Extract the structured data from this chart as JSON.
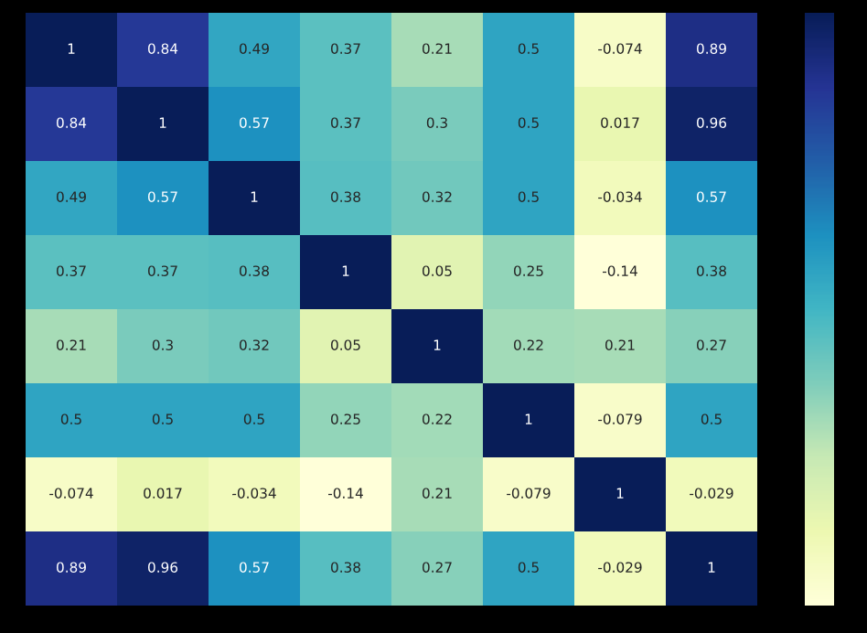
{
  "chart_data": {
    "type": "heatmap",
    "categories": [
      null,
      null,
      null,
      null,
      null,
      null,
      null,
      null
    ],
    "y_categories": [
      null,
      null,
      null,
      null,
      null,
      null,
      null,
      null
    ],
    "cells": [
      [
        1,
        0.84,
        0.49,
        0.37,
        0.21,
        0.5,
        -0.074,
        0.89
      ],
      [
        0.84,
        1,
        0.57,
        0.37,
        0.3,
        0.5,
        0.017,
        0.96
      ],
      [
        0.49,
        0.57,
        1,
        0.38,
        0.32,
        0.5,
        -0.034,
        0.57
      ],
      [
        0.37,
        0.37,
        0.38,
        1,
        0.05,
        0.25,
        -0.14,
        0.38
      ],
      [
        0.21,
        0.3,
        0.32,
        0.05,
        1,
        0.22,
        0.21,
        0.27
      ],
      [
        0.5,
        0.5,
        0.5,
        0.25,
        0.22,
        1,
        -0.079,
        0.5
      ],
      [
        -0.074,
        0.017,
        -0.034,
        -0.14,
        0.21,
        -0.079,
        1,
        -0.029
      ],
      [
        0.89,
        0.96,
        0.57,
        0.38,
        0.27,
        0.5,
        -0.029,
        1
      ]
    ],
    "data_labels": true
  }
}
